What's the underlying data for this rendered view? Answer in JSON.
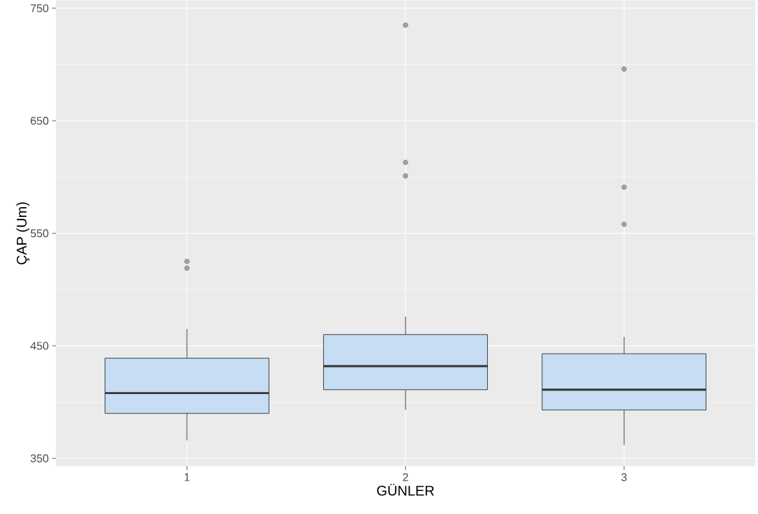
{
  "chart_data": {
    "type": "box",
    "xlabel": "GÜNLER",
    "ylabel": "ÇAP (Um)",
    "categories": [
      "1",
      "2",
      "3"
    ],
    "boxes": [
      {
        "low": 366,
        "q1": 390,
        "median": 408,
        "q3": 439,
        "high": 465,
        "outliers": [
          525,
          519
        ]
      },
      {
        "low": 393,
        "q1": 411,
        "median": 432,
        "q3": 460,
        "high": 476,
        "outliers": [
          735,
          613,
          601
        ]
      },
      {
        "low": 362,
        "q1": 393,
        "median": 411,
        "q3": 443,
        "high": 458,
        "outliers": [
          696,
          591,
          558
        ]
      }
    ],
    "color": "#c6ddf3",
    "ylim": [
      343,
      757
    ],
    "yticks": [
      350,
      450,
      550,
      650,
      750
    ],
    "grid": true
  }
}
